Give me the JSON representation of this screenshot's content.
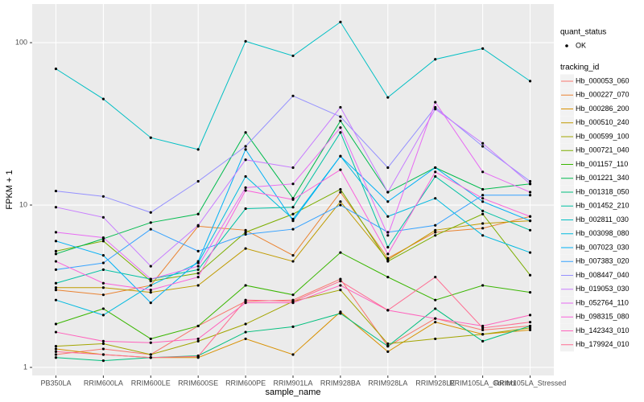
{
  "chart_data": {
    "type": "line",
    "x_label": "sample_name",
    "y_label": "FPKM + 1",
    "log_y": true,
    "grid": true,
    "legend_position": "right",
    "point_legend_title": "quant_status",
    "point_legend_label": "OK",
    "point_color": "#000000",
    "legend_title": "tracking_id",
    "categories": [
      "PB350LA",
      "RRIM600LA",
      "RRIM600LE",
      "RRIM600SE",
      "RRIM600PE",
      "RRIM901LA",
      "RRIM928BA",
      "RRIM928LA",
      "RRIM928LE",
      "RRIM105LA_Control",
      "RRIM105LA_Stressed"
    ],
    "ylim": [
      0.892,
      173
    ],
    "yticks": [
      1,
      10,
      100
    ],
    "series": [
      {
        "name": "Hb_000053_060",
        "color": "#F8766D",
        "values": [
          1.2,
          1.3,
          1.2,
          1.8,
          2.55,
          2.6,
          3.5,
          1.35,
          2.0,
          1.7,
          1.8
        ]
      },
      {
        "name": "Hb_000227_070",
        "color": "#EA8331",
        "values": [
          3.0,
          2.8,
          3.2,
          7.4,
          7.0,
          4.9,
          12,
          4.7,
          6.8,
          7.2,
          8.5
        ]
      },
      {
        "name": "Hb_000286_200",
        "color": "#D89000",
        "values": [
          1.3,
          1.2,
          1.15,
          1.15,
          1.5,
          1.2,
          2.2,
          1.25,
          1.9,
          1.6,
          1.7
        ]
      },
      {
        "name": "Hb_000510_240",
        "color": "#C09B00",
        "values": [
          3.1,
          3.1,
          2.9,
          3.2,
          5.4,
          4.5,
          10.5,
          4.6,
          7.0,
          7.7,
          8.0
        ]
      },
      {
        "name": "Hb_000599_100",
        "color": "#A3A500",
        "values": [
          1.35,
          1.4,
          1.2,
          1.45,
          1.85,
          2.55,
          3.0,
          1.4,
          1.5,
          1.6,
          1.75
        ]
      },
      {
        "name": "Hb_000721_040",
        "color": "#7CAE00",
        "values": [
          5.2,
          6.0,
          3.4,
          3.8,
          6.8,
          8.8,
          12.5,
          4.5,
          6.5,
          8.8,
          3.7
        ]
      },
      {
        "name": "Hb_001157_110",
        "color": "#39B600",
        "values": [
          1.85,
          2.3,
          1.5,
          1.8,
          3.2,
          2.8,
          5.1,
          3.6,
          2.6,
          3.2,
          2.9
        ]
      },
      {
        "name": "Hb_001221_340",
        "color": "#00BB4E",
        "values": [
          5.0,
          6.2,
          7.8,
          8.8,
          28,
          11,
          33,
          12,
          17,
          12.5,
          13.5
        ]
      },
      {
        "name": "Hb_001318_050",
        "color": "#00BF7D",
        "values": [
          1.15,
          1.1,
          1.15,
          1.18,
          1.65,
          1.78,
          2.15,
          1.35,
          2.3,
          1.45,
          1.8
        ]
      },
      {
        "name": "Hb_001452_210",
        "color": "#00C1A3",
        "values": [
          3.3,
          4.0,
          3.5,
          4.0,
          9.5,
          9.7,
          28,
          5.5,
          15,
          9.2,
          7.0
        ]
      },
      {
        "name": "Hb_002811_030",
        "color": "#00BFC4",
        "values": [
          69,
          45,
          26,
          22,
          102,
          83,
          134,
          46,
          79,
          92,
          58
        ]
      },
      {
        "name": "Hb_003098_080",
        "color": "#00BAE0",
        "values": [
          2.6,
          2.1,
          3.2,
          4.4,
          15,
          8.2,
          20,
          8.5,
          11,
          6.5,
          5.1
        ]
      },
      {
        "name": "Hb_007023_030",
        "color": "#00B0F6",
        "values": [
          6.0,
          4.9,
          2.5,
          4.5,
          22,
          8.0,
          20,
          10.5,
          17,
          10.5,
          8.0
        ]
      },
      {
        "name": "Hb_007383_020",
        "color": "#35A2FF",
        "values": [
          4.0,
          4.4,
          7.1,
          5.2,
          6.6,
          7.1,
          10.0,
          6.8,
          7.5,
          11.5,
          11.5
        ]
      },
      {
        "name": "Hb_008447_040",
        "color": "#9590FF",
        "values": [
          12.2,
          11.3,
          9.0,
          14,
          23,
          47,
          35,
          17,
          40,
          23,
          14
        ]
      },
      {
        "name": "Hb_019053_030",
        "color": "#C77CFF",
        "values": [
          9.7,
          8.4,
          4.2,
          7.5,
          19,
          17,
          40,
          12,
          39,
          24,
          13.5
        ]
      },
      {
        "name": "Hb_052764_110",
        "color": "#E76BF3",
        "values": [
          6.8,
          6.3,
          3.5,
          4.2,
          12.8,
          13.5,
          30,
          6.5,
          43,
          16,
          12
        ]
      },
      {
        "name": "Hb_098315_080",
        "color": "#FA62DB",
        "values": [
          4.5,
          3.3,
          3.0,
          3.6,
          12.3,
          10.8,
          16.5,
          5.0,
          16,
          11,
          8.5
        ]
      },
      {
        "name": "Hb_142343_010",
        "color": "#FF62BC",
        "values": [
          1.65,
          1.45,
          1.42,
          1.5,
          2.5,
          2.5,
          3.2,
          2.25,
          2.0,
          1.8,
          2.1
        ]
      },
      {
        "name": "Hb_179924_010",
        "color": "#FF6C91",
        "values": [
          1.25,
          1.2,
          1.15,
          1.17,
          2.6,
          2.55,
          3.4,
          2.25,
          3.6,
          1.75,
          1.9
        ]
      }
    ]
  }
}
